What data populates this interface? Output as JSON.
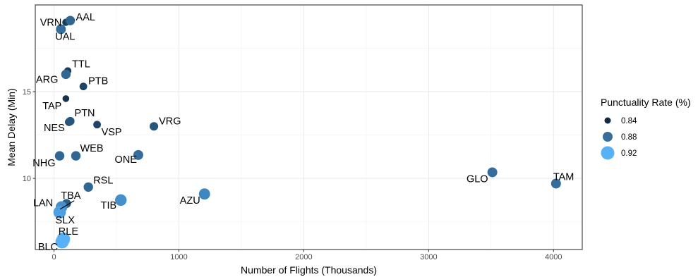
{
  "chart_data": {
    "type": "scatter",
    "xlabel": "Number of Flights (Thousands)",
    "ylabel": "Mean Delay (Min)",
    "xlim": [
      -150,
      4230
    ],
    "ylim": [
      5.9,
      20.0
    ],
    "x_ticks": [
      0,
      1000,
      2000,
      3000,
      4000
    ],
    "y_ticks": [
      10,
      15
    ],
    "grid": true,
    "legend": {
      "title": "Punctuality Rate (%)",
      "placement": "right",
      "entries": [
        {
          "label": "0.84",
          "value": 0.84
        },
        {
          "label": "0.88",
          "value": 0.88
        },
        {
          "label": "0.92",
          "value": 0.92
        }
      ]
    },
    "colors": {
      "low": "#132B43",
      "high": "#56B1F7"
    },
    "points": [
      {
        "name": "AAL",
        "x": 130,
        "y": 19.1,
        "rate": 0.875
      },
      {
        "name": "VRN",
        "x": 95,
        "y": 19.0,
        "rate": 0.85
      },
      {
        "name": "UAL",
        "x": 55,
        "y": 18.6,
        "rate": 0.88
      },
      {
        "name": "TTL",
        "x": 110,
        "y": 16.2,
        "rate": 0.85
      },
      {
        "name": "ARG",
        "x": 95,
        "y": 16.0,
        "rate": 0.875
      },
      {
        "name": "PTB",
        "x": 235,
        "y": 15.3,
        "rate": 0.855
      },
      {
        "name": "TAP",
        "x": 95,
        "y": 14.6,
        "rate": 0.845
      },
      {
        "name": "PTN",
        "x": 130,
        "y": 13.3,
        "rate": 0.865
      },
      {
        "name": "NES",
        "x": 120,
        "y": 13.25,
        "rate": 0.86
      },
      {
        "name": "VSP",
        "x": 345,
        "y": 13.1,
        "rate": 0.855
      },
      {
        "name": "VRG",
        "x": 800,
        "y": 13.0,
        "rate": 0.865
      },
      {
        "name": "WEB",
        "x": 175,
        "y": 11.3,
        "rate": 0.875
      },
      {
        "name": "NHG",
        "x": 45,
        "y": 11.3,
        "rate": 0.875
      },
      {
        "name": "ONE",
        "x": 675,
        "y": 11.35,
        "rate": 0.88
      },
      {
        "name": "GLO",
        "x": 3510,
        "y": 10.35,
        "rate": 0.88
      },
      {
        "name": "TAM",
        "x": 4020,
        "y": 9.7,
        "rate": 0.88
      },
      {
        "name": "RSL",
        "x": 275,
        "y": 9.5,
        "rate": 0.875
      },
      {
        "name": "AZU",
        "x": 1205,
        "y": 9.1,
        "rate": 0.895
      },
      {
        "name": "TIB",
        "x": 535,
        "y": 8.75,
        "rate": 0.9
      },
      {
        "name": "TBA",
        "x": 100,
        "y": 8.55,
        "rate": 0.87
      },
      {
        "name": "LAN",
        "x": 60,
        "y": 8.35,
        "rate": 0.9
      },
      {
        "name": "SLX",
        "x": 45,
        "y": 8.05,
        "rate": 0.91
      },
      {
        "name": "RLE",
        "x": 75,
        "y": 6.5,
        "rate": 0.925
      },
      {
        "name": "BLC",
        "x": 65,
        "y": 6.35,
        "rate": 0.925
      }
    ]
  }
}
